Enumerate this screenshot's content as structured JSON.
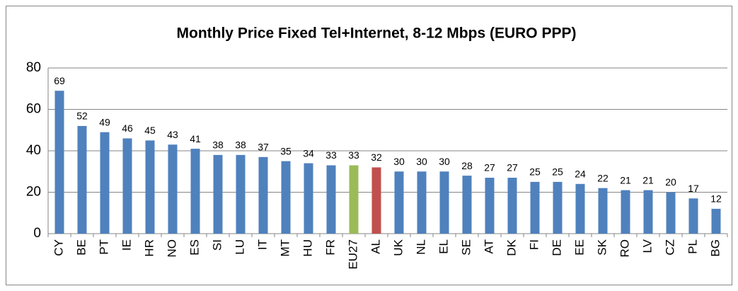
{
  "chart_data": {
    "type": "bar",
    "title": "Monthly Price Fixed Tel+Internet, 8-12 Mbps (EURO PPP)",
    "categories": [
      "CY",
      "BE",
      "PT",
      "IE",
      "HR",
      "NO",
      "ES",
      "SI",
      "LU",
      "IT",
      "MT",
      "HU",
      "FR",
      "EU27",
      "AL",
      "UK",
      "NL",
      "EL",
      "SE",
      "AT",
      "DK",
      "FI",
      "DE",
      "EE",
      "SK",
      "RO",
      "LV",
      "CZ",
      "PL",
      "BG"
    ],
    "values": [
      69,
      52,
      49,
      46,
      45,
      43,
      41,
      38,
      38,
      37,
      35,
      34,
      33,
      33,
      32,
      30,
      30,
      30,
      28,
      27,
      27,
      25,
      25,
      24,
      22,
      21,
      21,
      20,
      17,
      12
    ],
    "colors": [
      "#4f81bd",
      "#4f81bd",
      "#4f81bd",
      "#4f81bd",
      "#4f81bd",
      "#4f81bd",
      "#4f81bd",
      "#4f81bd",
      "#4f81bd",
      "#4f81bd",
      "#4f81bd",
      "#4f81bd",
      "#4f81bd",
      "#9bbb59",
      "#c0504d",
      "#4f81bd",
      "#4f81bd",
      "#4f81bd",
      "#4f81bd",
      "#4f81bd",
      "#4f81bd",
      "#4f81bd",
      "#4f81bd",
      "#4f81bd",
      "#4f81bd",
      "#4f81bd",
      "#4f81bd",
      "#4f81bd",
      "#4f81bd",
      "#4f81bd"
    ],
    "ylim": [
      0,
      80
    ],
    "yticks": [
      0,
      20,
      40,
      60,
      80
    ],
    "grid": true
  }
}
